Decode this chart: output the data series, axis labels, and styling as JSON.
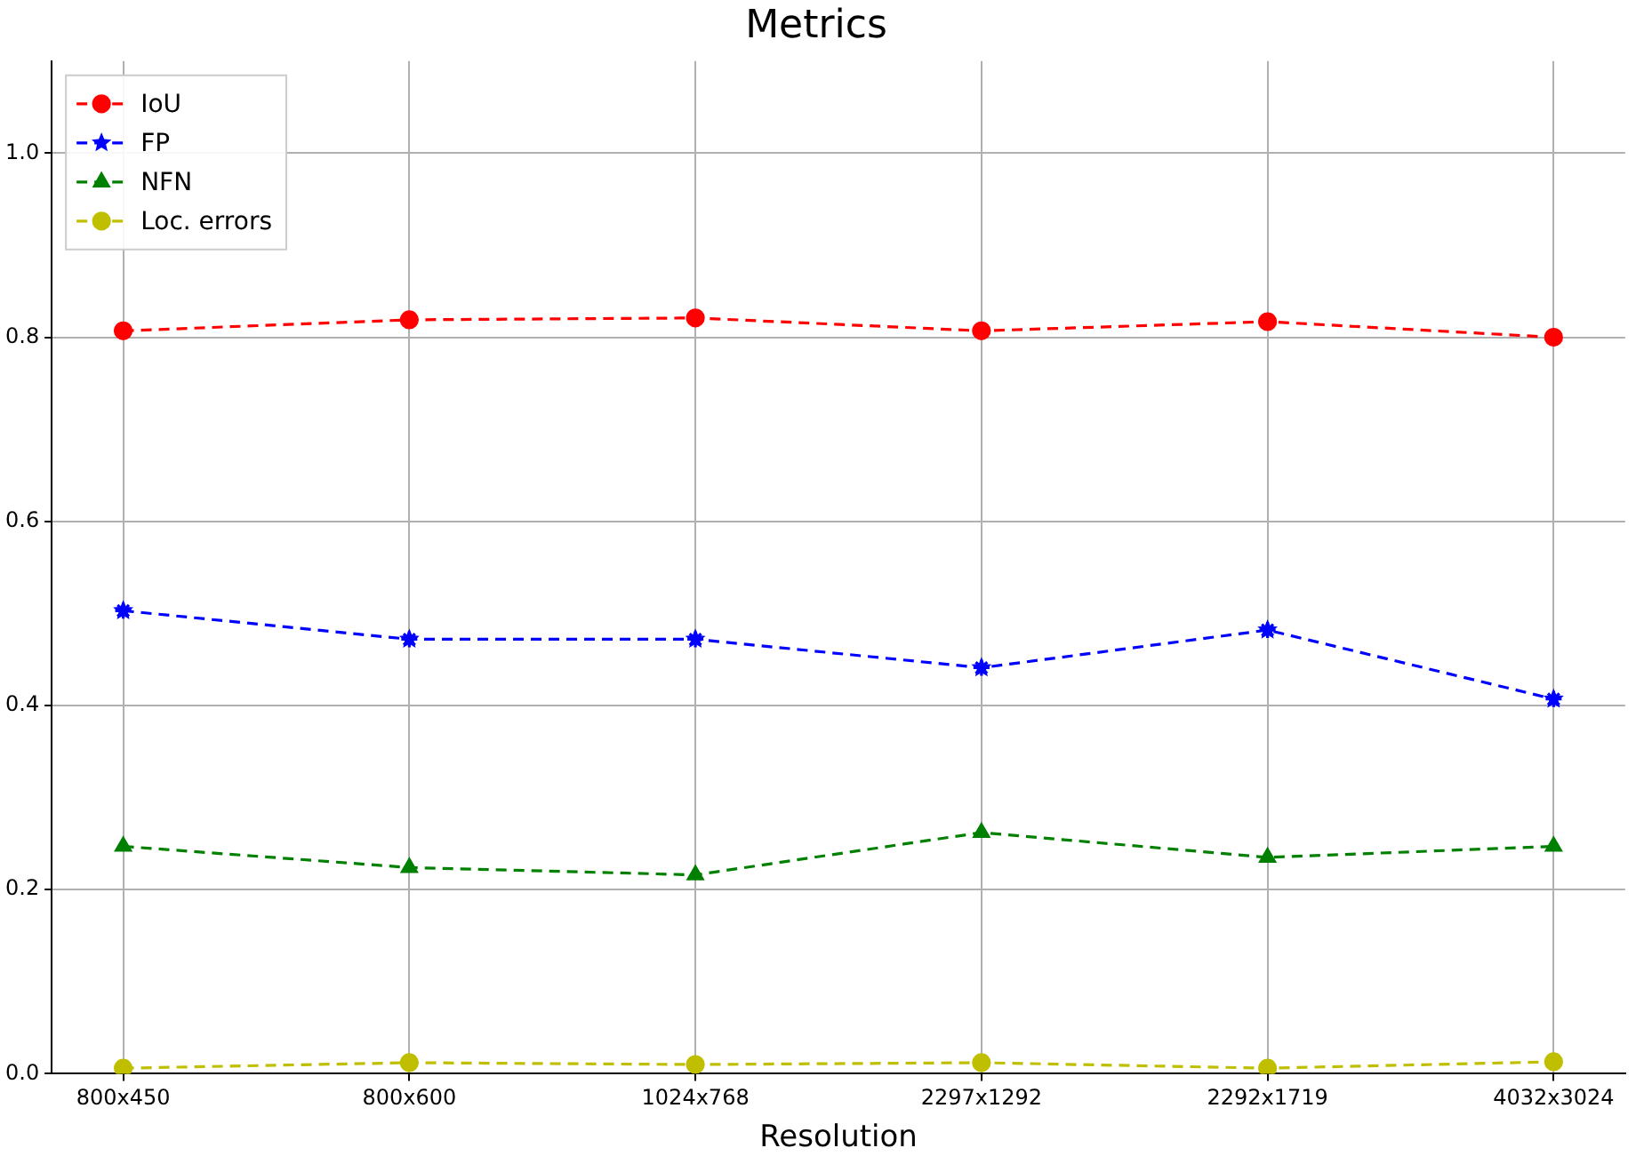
{
  "chart_data": {
    "type": "line",
    "title": "Metrics",
    "xlabel": "Resolution",
    "categories": [
      "800x450",
      "800x600",
      "1024x768",
      "2297x1292",
      "2292x1719",
      "4032x3024"
    ],
    "series": [
      {
        "name": "IoU",
        "color": "#ff0000",
        "marker": "circle",
        "values": [
          0.807,
          0.819,
          0.821,
          0.807,
          0.817,
          0.8
        ]
      },
      {
        "name": "FP",
        "color": "#0000ff",
        "marker": "star",
        "values": [
          0.503,
          0.472,
          0.472,
          0.441,
          0.482,
          0.407
        ]
      },
      {
        "name": "NFN",
        "color": "#008000",
        "marker": "triangle",
        "values": [
          0.247,
          0.224,
          0.216,
          0.262,
          0.235,
          0.247
        ]
      },
      {
        "name": "Loc. errors",
        "color": "#bfbf00",
        "marker": "circle",
        "values": [
          0.006,
          0.012,
          0.01,
          0.012,
          0.006,
          0.013
        ]
      }
    ],
    "ylim": [
      0,
      1.1
    ],
    "yticks": [
      {
        "value": 0,
        "label": "0.0"
      },
      0.2,
      0.4,
      0.6,
      0.8,
      {
        "value": 1,
        "label": "1.0"
      }
    ],
    "grid": true,
    "legend": "top left",
    "line_style": "dashed"
  }
}
